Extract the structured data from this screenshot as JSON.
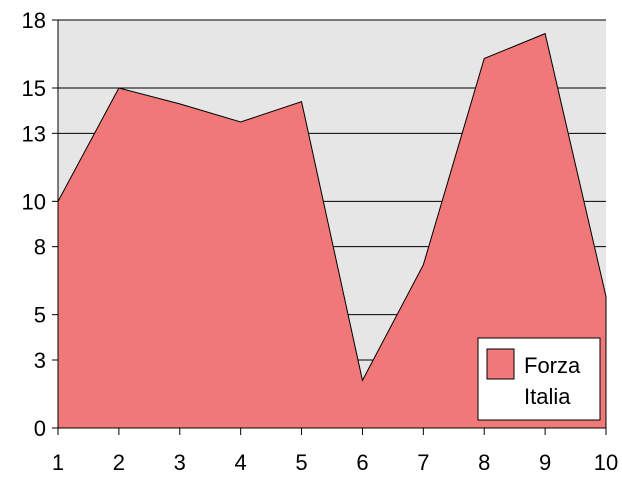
{
  "chart_data": {
    "type": "area",
    "x": [
      1,
      2,
      3,
      4,
      5,
      6,
      7,
      8,
      9,
      10
    ],
    "series": [
      {
        "name": "Forza Italia",
        "values": [
          10.0,
          15.0,
          14.3,
          13.5,
          14.4,
          2.1,
          7.2,
          16.3,
          17.4,
          5.8
        ],
        "color": "#f07878"
      }
    ],
    "xlim": [
      1,
      10
    ],
    "ylim": [
      0,
      18
    ],
    "y_ticks": [
      0,
      3,
      5,
      8,
      10,
      13,
      15,
      18
    ],
    "y_tick_labels": [
      "0",
      "3",
      "5",
      "8",
      "10",
      "13",
      "15",
      "18"
    ],
    "x_tick_labels": [
      "1",
      "2",
      "3",
      "4",
      "5",
      "6",
      "7",
      "8",
      "9",
      "10"
    ],
    "legend": {
      "position": "bottom-right",
      "lines": [
        "Forza",
        "Italia"
      ]
    },
    "grid": true,
    "plot_background": "#e6e6e6",
    "title": "",
    "xlabel": "",
    "ylabel": ""
  }
}
